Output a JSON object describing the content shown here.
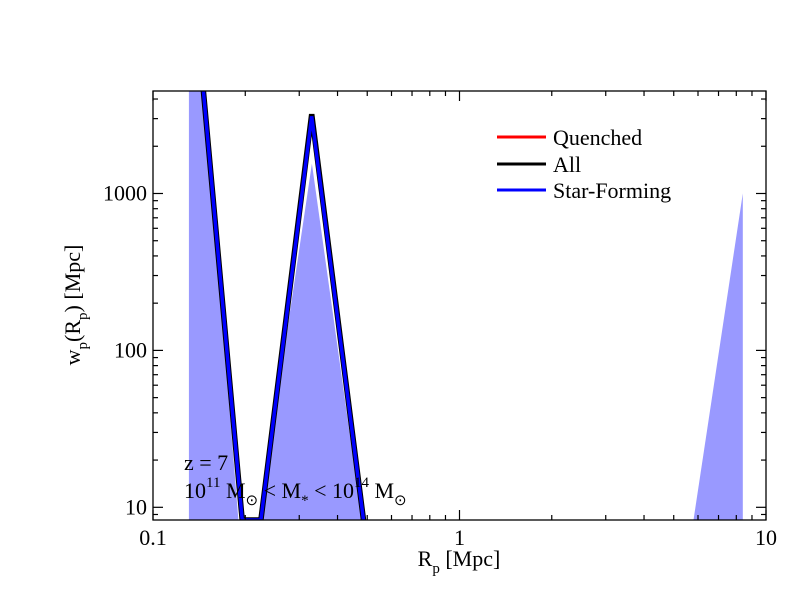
{
  "chart_data": {
    "type": "line",
    "xlabel": "R",
    "xlabel_sub": "p",
    "xlabel_unit": " [Mpc]",
    "ylabel_main": "w",
    "ylabel_sub1": "p",
    "ylabel_open": "(R",
    "ylabel_sub2": "p",
    "ylabel_close": ") [Mpc]",
    "x_scale": "log",
    "y_scale": "log",
    "xlim": [
      0.1,
      10
    ],
    "ylim": [
      8.3,
      4500
    ],
    "x_ticks": [
      {
        "value": 0.1,
        "label": "0.1"
      },
      {
        "value": 1,
        "label": "1"
      },
      {
        "value": 10,
        "label": "10"
      }
    ],
    "y_ticks": [
      {
        "value": 10,
        "label": "10"
      },
      {
        "value": 100,
        "label": "100"
      },
      {
        "value": 1000,
        "label": "1000"
      }
    ],
    "legend": {
      "placement": "top-right",
      "entries": [
        {
          "name": "Quenched",
          "color": "#ff0000"
        },
        {
          "name": "All",
          "color": "#000000"
        },
        {
          "name": "Star-Forming",
          "color": "#0000ff"
        }
      ]
    },
    "annotation": {
      "line1": "z = 7",
      "line2_a": "10",
      "line2_a_exp": "11",
      "line2_b": " M",
      "line2_c": " < M",
      "line2_c_sub": "*",
      "line2_d": " < 10",
      "line2_d_exp": "14",
      "line2_e": " M"
    },
    "band_color": "#9999ff",
    "bands": [
      {
        "name": "Star-Forming band 1",
        "points": [
          [
            0.131,
            8.3
          ],
          [
            0.131,
            4500
          ],
          [
            0.1468,
            4500
          ],
          [
            0.19,
            8.3
          ]
        ]
      },
      {
        "name": "Star-Forming band 2",
        "points": [
          [
            0.222,
            8.3
          ],
          [
            0.33,
            1550
          ],
          [
            0.48,
            8.3
          ]
        ]
      },
      {
        "name": "Star-Forming band 3",
        "points": [
          [
            5.8,
            8.3
          ],
          [
            8.4,
            1000
          ],
          [
            8.4,
            8.3
          ]
        ]
      }
    ],
    "series": [
      {
        "name": "Quenched",
        "color": "#ff0000",
        "points": [
          [
            0.146,
            4500
          ],
          [
            0.1955,
            8.3
          ],
          [
            0.2249,
            8.3
          ],
          [
            0.3294,
            3100
          ],
          [
            0.486,
            8.3
          ]
        ]
      },
      {
        "name": "All",
        "color": "#000000",
        "points": [
          [
            0.146,
            4500
          ],
          [
            0.1955,
            8.3
          ],
          [
            0.2249,
            8.3
          ],
          [
            0.3294,
            3200
          ],
          [
            0.486,
            8.3
          ]
        ]
      },
      {
        "name": "Star-Forming",
        "color": "#0000ff",
        "points": [
          [
            0.146,
            4500
          ],
          [
            0.1955,
            8.3
          ],
          [
            0.2249,
            8.3
          ],
          [
            0.3294,
            3100
          ],
          [
            0.486,
            8.3
          ]
        ]
      }
    ]
  }
}
